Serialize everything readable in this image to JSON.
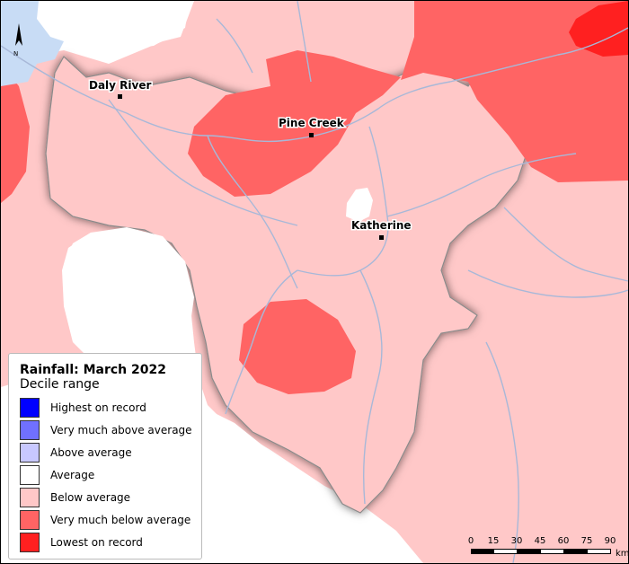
{
  "map": {
    "legend": {
      "title": "Rainfall: March 2022",
      "subtitle": "Decile range",
      "items": [
        {
          "label": "Highest on record",
          "color": "#0000ff"
        },
        {
          "label": "Very much above average",
          "color": "#7070ff"
        },
        {
          "label": "Above average",
          "color": "#c8c8ff"
        },
        {
          "label": "Average",
          "color": "#ffffff"
        },
        {
          "label": "Below average",
          "color": "#ffc8c8"
        },
        {
          "label": "Very much below average",
          "color": "#ff6464"
        },
        {
          "label": "Lowest on record",
          "color": "#ff2020"
        }
      ]
    },
    "towns": [
      {
        "name": "Daly River"
      },
      {
        "name": "Pine Creek"
      },
      {
        "name": "Katherine"
      }
    ],
    "north_arrow": {
      "label": "N"
    },
    "scale_bar": {
      "ticks": [
        "0",
        "15",
        "30",
        "45",
        "60",
        "75",
        "90"
      ],
      "unit": "km"
    },
    "colors": {
      "water": "#c8dcf5",
      "river": "#a8b8d8",
      "boundary": "#8a8a8a"
    }
  }
}
